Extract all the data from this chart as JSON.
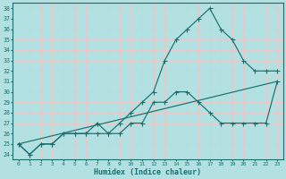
{
  "title": "",
  "xlabel": "Humidex (Indice chaleur)",
  "ylabel": "",
  "bg_color": "#b3e0e0",
  "grid_color": "#e8c8c8",
  "line_color": "#1a7070",
  "xlim": [
    -0.5,
    23.5
  ],
  "ylim": [
    23.5,
    38.5
  ],
  "xticks": [
    0,
    1,
    2,
    3,
    4,
    5,
    6,
    7,
    8,
    9,
    10,
    11,
    12,
    13,
    14,
    15,
    16,
    17,
    18,
    19,
    20,
    21,
    22,
    23
  ],
  "yticks": [
    24,
    25,
    26,
    27,
    28,
    29,
    30,
    31,
    32,
    33,
    34,
    35,
    36,
    37,
    38
  ],
  "line1_x": [
    0,
    1,
    2,
    3,
    4,
    5,
    6,
    7,
    8,
    9,
    10,
    11,
    12,
    13,
    14,
    15,
    16,
    17,
    18,
    19,
    20,
    21,
    22,
    23
  ],
  "line1_y": [
    25,
    24,
    25,
    25,
    26,
    26,
    26,
    26,
    26,
    26,
    27,
    27,
    29,
    29,
    30,
    30,
    29,
    28,
    27,
    27,
    27,
    27,
    27,
    31
  ],
  "line2_x": [
    0,
    1,
    2,
    3,
    4,
    5,
    6,
    7,
    8,
    9,
    10,
    11,
    12,
    13,
    14,
    15,
    16,
    17,
    18,
    19,
    20,
    21,
    22,
    23
  ],
  "line2_y": [
    25,
    24,
    25,
    25,
    26,
    26,
    26,
    27,
    26,
    27,
    28,
    29,
    30,
    33,
    35,
    36,
    37,
    38,
    36,
    35,
    33,
    32,
    32,
    32
  ],
  "line3_x": [
    0,
    23
  ],
  "line3_y": [
    25,
    31
  ]
}
